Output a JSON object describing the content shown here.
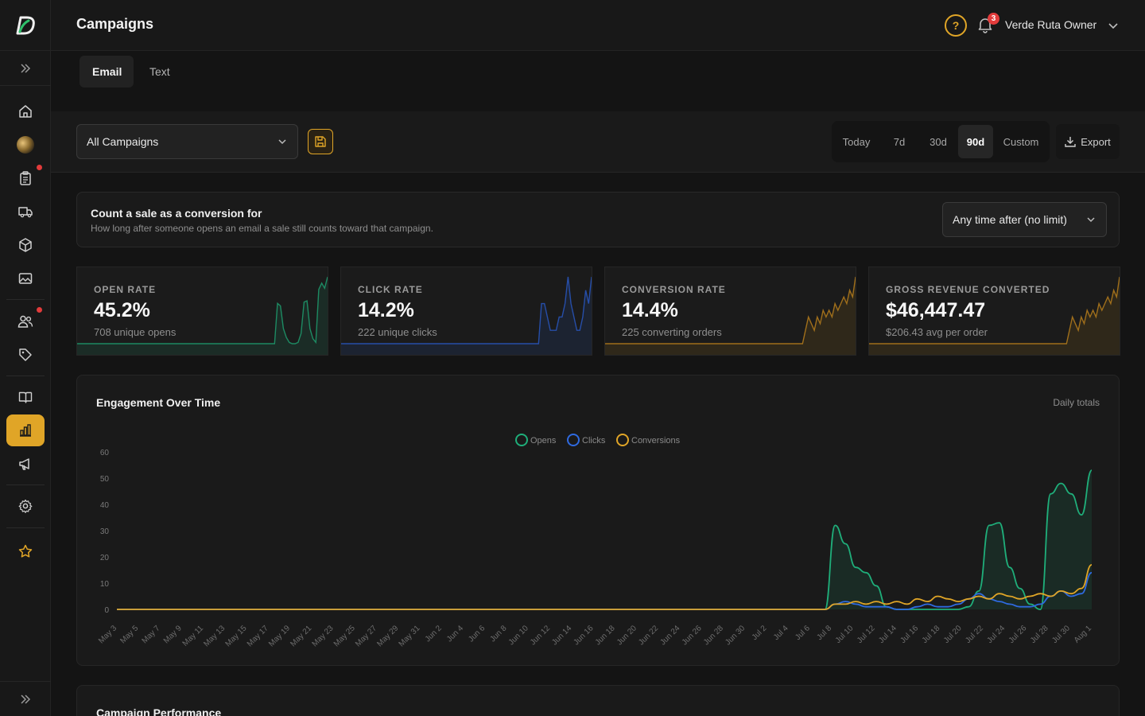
{
  "header": {
    "title": "Campaigns",
    "help_label": "?",
    "notifications_count": "3",
    "user_name": "Verde Ruta Owner"
  },
  "sidebar": {
    "items": [
      {
        "icon": "home-icon"
      },
      {
        "icon": "avatar-image"
      },
      {
        "icon": "clipboard-icon",
        "dot": true
      },
      {
        "icon": "truck-icon"
      },
      {
        "icon": "box-icon"
      },
      {
        "icon": "image-icon"
      },
      {
        "icon": "users-icon",
        "dot": true
      },
      {
        "icon": "tag-icon"
      },
      {
        "icon": "book-icon"
      },
      {
        "icon": "bar-chart-icon",
        "active": true
      },
      {
        "icon": "megaphone-icon"
      },
      {
        "icon": "gear-icon"
      },
      {
        "icon": "star-icon"
      }
    ]
  },
  "tabs": [
    {
      "label": "Email",
      "active": true
    },
    {
      "label": "Text",
      "active": false
    }
  ],
  "filters": {
    "campaign_select": "All Campaigns",
    "ranges": [
      {
        "label": "Today",
        "active": false
      },
      {
        "label": "7d",
        "active": false
      },
      {
        "label": "30d",
        "active": false
      },
      {
        "label": "90d",
        "active": true
      },
      {
        "label": "Custom",
        "active": false
      }
    ],
    "export_label": "Export"
  },
  "conversion": {
    "title": "Count a sale as a conversion for",
    "subtitle": "How long after someone opens an email a sale still counts toward that campaign.",
    "window": "Any time after (no limit)"
  },
  "kpis": [
    {
      "label": "OPEN RATE",
      "value": "45.2%",
      "sub": "708 unique opens",
      "color": "#1fae7a",
      "spark": [
        0,
        0,
        0,
        0,
        0,
        0,
        0,
        0,
        0,
        0,
        0,
        0,
        0,
        0,
        0,
        0,
        0,
        0,
        0,
        0,
        0,
        0,
        0,
        0,
        0,
        0,
        0,
        0,
        0,
        0,
        0,
        0,
        0,
        0,
        0,
        0,
        0,
        0,
        0,
        0,
        0,
        0,
        0,
        0,
        0,
        0,
        0,
        0,
        0,
        0,
        0,
        0,
        0,
        0,
        0,
        0,
        0,
        0,
        0,
        0,
        0,
        0,
        0,
        0,
        0,
        0,
        0,
        0,
        32,
        30,
        12,
        5,
        1,
        0,
        0,
        1,
        8,
        33,
        34,
        12,
        4,
        1,
        43,
        48,
        44,
        53
      ]
    },
    {
      "label": "CLICK RATE",
      "value": "14.2%",
      "sub": "222 unique clicks",
      "color": "#2b5fd6",
      "spark": [
        0,
        0,
        0,
        0,
        0,
        0,
        0,
        0,
        0,
        0,
        0,
        0,
        0,
        0,
        0,
        0,
        0,
        0,
        0,
        0,
        0,
        0,
        0,
        0,
        0,
        0,
        0,
        0,
        0,
        0,
        0,
        0,
        0,
        0,
        0,
        0,
        0,
        0,
        0,
        0,
        0,
        0,
        0,
        0,
        0,
        0,
        0,
        0,
        0,
        0,
        0,
        0,
        0,
        0,
        0,
        0,
        0,
        0,
        0,
        0,
        0,
        0,
        0,
        0,
        0,
        0,
        0,
        0,
        3,
        3,
        2,
        1,
        1,
        1,
        2,
        2,
        3,
        5,
        3,
        2,
        1,
        1,
        2,
        4,
        3,
        5
      ]
    },
    {
      "label": "CONVERSION RATE",
      "value": "14.4%",
      "sub": "225 converting orders",
      "color": "#c9891c",
      "spark": [
        0,
        0,
        0,
        0,
        0,
        0,
        0,
        0,
        0,
        0,
        0,
        0,
        0,
        0,
        0,
        0,
        0,
        0,
        0,
        0,
        0,
        0,
        0,
        0,
        0,
        0,
        0,
        0,
        0,
        0,
        0,
        0,
        0,
        0,
        0,
        0,
        0,
        0,
        0,
        0,
        0,
        0,
        0,
        0,
        0,
        0,
        0,
        0,
        0,
        0,
        0,
        0,
        0,
        0,
        0,
        0,
        0,
        0,
        0,
        0,
        0,
        0,
        0,
        0,
        0,
        0,
        0,
        0,
        2,
        4,
        3,
        2,
        4,
        3,
        5,
        4,
        5,
        4,
        6,
        5,
        6,
        7,
        6,
        8,
        7,
        10
      ]
    },
    {
      "label": "GROSS REVENUE CONVERTED",
      "value": "$46,447.47",
      "sub": "$206.43 avg per order",
      "color": "#c9891c",
      "spark": [
        0,
        0,
        0,
        0,
        0,
        0,
        0,
        0,
        0,
        0,
        0,
        0,
        0,
        0,
        0,
        0,
        0,
        0,
        0,
        0,
        0,
        0,
        0,
        0,
        0,
        0,
        0,
        0,
        0,
        0,
        0,
        0,
        0,
        0,
        0,
        0,
        0,
        0,
        0,
        0,
        0,
        0,
        0,
        0,
        0,
        0,
        0,
        0,
        0,
        0,
        0,
        0,
        0,
        0,
        0,
        0,
        0,
        0,
        0,
        0,
        0,
        0,
        0,
        0,
        0,
        0,
        0,
        0,
        2,
        4,
        3,
        2,
        4,
        3,
        5,
        4,
        5,
        4,
        6,
        5,
        6,
        7,
        6,
        8,
        7,
        10
      ]
    }
  ],
  "engagement": {
    "title": "Engagement Over Time",
    "note": "Daily totals"
  },
  "performance": {
    "title": "Campaign Performance"
  },
  "chart_data": {
    "type": "line",
    "title": "Engagement Over Time",
    "ylim": [
      0,
      60
    ],
    "yticks": [
      0,
      10,
      20,
      30,
      40,
      50,
      60
    ],
    "grid": false,
    "legend_position": "top",
    "x_tick_labels": [
      "May 3",
      "May 5",
      "May 7",
      "May 9",
      "May 11",
      "May 13",
      "May 15",
      "May 17",
      "May 19",
      "May 21",
      "May 23",
      "May 25",
      "May 27",
      "May 29",
      "May 31",
      "Jun 2",
      "Jun 4",
      "Jun 6",
      "Jun 8",
      "Jun 10",
      "Jun 12",
      "Jun 14",
      "Jun 16",
      "Jun 18",
      "Jun 20",
      "Jun 22",
      "Jun 24",
      "Jun 26",
      "Jun 28",
      "Jun 30",
      "Jul 2",
      "Jul 4",
      "Jul 6",
      "Jul 8",
      "Jul 10",
      "Jul 12",
      "Jul 14",
      "Jul 16",
      "Jul 18",
      "Jul 20",
      "Jul 22",
      "Jul 24",
      "Jul 26",
      "Jul 28",
      "Jul 30",
      "Aug 1"
    ],
    "x_start": "May 3",
    "x_end": "Aug 1",
    "series": [
      {
        "name": "Opens",
        "color": "#1fae7a",
        "values": [
          0,
          0,
          0,
          0,
          0,
          0,
          0,
          0,
          0,
          0,
          0,
          0,
          0,
          0,
          0,
          0,
          0,
          0,
          0,
          0,
          0,
          0,
          0,
          0,
          0,
          0,
          0,
          0,
          0,
          0,
          0,
          0,
          0,
          0,
          0,
          0,
          0,
          0,
          0,
          0,
          0,
          0,
          0,
          0,
          0,
          0,
          0,
          0,
          0,
          0,
          0,
          0,
          0,
          0,
          0,
          0,
          0,
          0,
          0,
          0,
          0,
          0,
          0,
          0,
          0,
          0,
          0,
          0,
          0,
          0,
          32,
          25,
          16,
          14,
          9,
          1,
          0,
          0,
          0,
          0,
          0,
          0,
          0,
          1,
          7,
          32,
          33,
          16,
          8,
          2,
          0,
          44,
          48,
          44,
          36,
          53
        ]
      },
      {
        "name": "Clicks",
        "color": "#2f6ae0",
        "values": [
          0,
          0,
          0,
          0,
          0,
          0,
          0,
          0,
          0,
          0,
          0,
          0,
          0,
          0,
          0,
          0,
          0,
          0,
          0,
          0,
          0,
          0,
          0,
          0,
          0,
          0,
          0,
          0,
          0,
          0,
          0,
          0,
          0,
          0,
          0,
          0,
          0,
          0,
          0,
          0,
          0,
          0,
          0,
          0,
          0,
          0,
          0,
          0,
          0,
          0,
          0,
          0,
          0,
          0,
          0,
          0,
          0,
          0,
          0,
          0,
          0,
          0,
          0,
          0,
          0,
          0,
          0,
          0,
          0,
          0,
          2,
          3,
          2,
          1,
          1,
          1,
          0,
          0,
          1,
          2,
          1,
          1,
          2,
          4,
          6,
          4,
          3,
          2,
          1,
          1,
          2,
          5,
          7,
          5,
          6,
          14
        ]
      },
      {
        "name": "Conversions",
        "color": "#e0a527",
        "values": [
          0,
          0,
          0,
          0,
          0,
          0,
          0,
          0,
          0,
          0,
          0,
          0,
          0,
          0,
          0,
          0,
          0,
          0,
          0,
          0,
          0,
          0,
          0,
          0,
          0,
          0,
          0,
          0,
          0,
          0,
          0,
          0,
          0,
          0,
          0,
          0,
          0,
          0,
          0,
          0,
          0,
          0,
          0,
          0,
          0,
          0,
          0,
          0,
          0,
          0,
          0,
          0,
          0,
          0,
          0,
          0,
          0,
          0,
          0,
          0,
          0,
          0,
          0,
          0,
          0,
          0,
          0,
          0,
          0,
          0,
          2,
          2,
          3,
          2,
          3,
          2,
          3,
          2,
          4,
          3,
          5,
          4,
          3,
          4,
          5,
          4,
          6,
          5,
          4,
          5,
          6,
          5,
          7,
          6,
          8,
          17
        ]
      }
    ]
  }
}
